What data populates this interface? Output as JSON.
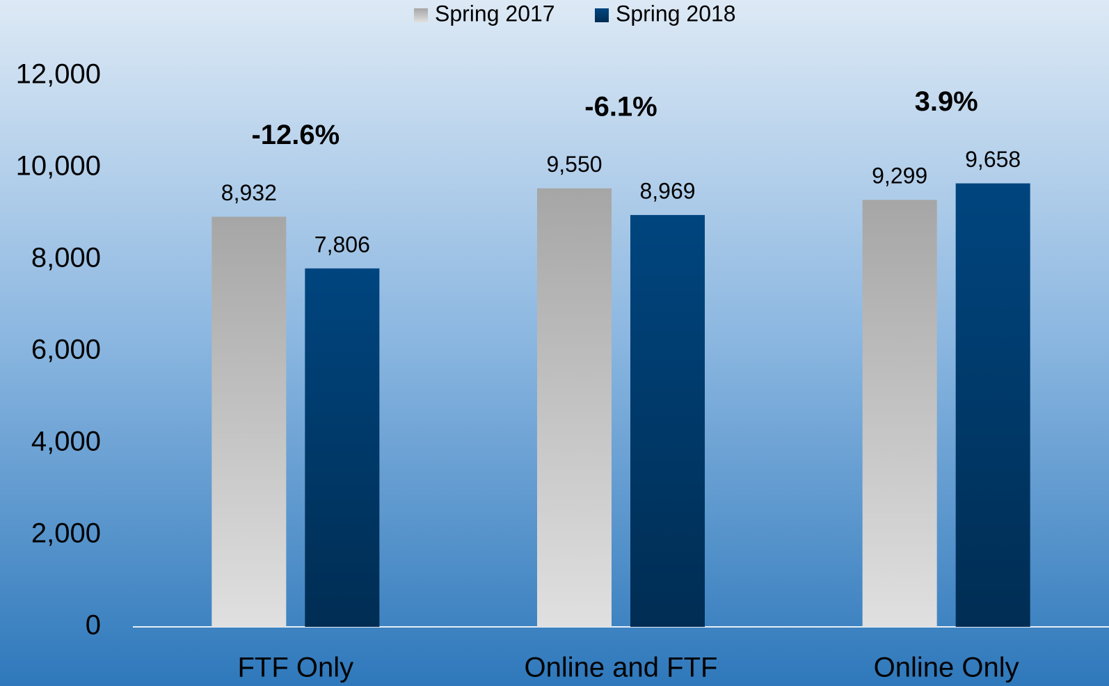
{
  "chart_data": {
    "type": "bar",
    "categories": [
      "FTF Only",
      "Online and FTF",
      "Online Only"
    ],
    "series": [
      {
        "name": "Spring 2017",
        "color": "#a6a6a6",
        "values": [
          8932,
          9550,
          9299
        ],
        "value_labels": [
          "8,932",
          "9,550",
          "9,299"
        ]
      },
      {
        "name": "Spring 2018",
        "color": "#00457f",
        "values": [
          7806,
          8969,
          9658
        ],
        "value_labels": [
          "7,806",
          "8,969",
          "9,658"
        ]
      }
    ],
    "annotations": [
      "-12.6%",
      "-6.1%",
      "3.9%"
    ],
    "ylim": [
      0,
      12000
    ],
    "yticks": [
      0,
      {
        "value": 2000,
        "label": "2,000"
      },
      {
        "value": 4000,
        "label": "4,000"
      },
      {
        "value": 6000,
        "label": "6,000"
      },
      {
        "value": 8000,
        "label": "8,000"
      },
      {
        "value": 10000,
        "label": "10,000"
      },
      {
        "value": 12000,
        "label": "12,000"
      }
    ],
    "legend": "top"
  }
}
